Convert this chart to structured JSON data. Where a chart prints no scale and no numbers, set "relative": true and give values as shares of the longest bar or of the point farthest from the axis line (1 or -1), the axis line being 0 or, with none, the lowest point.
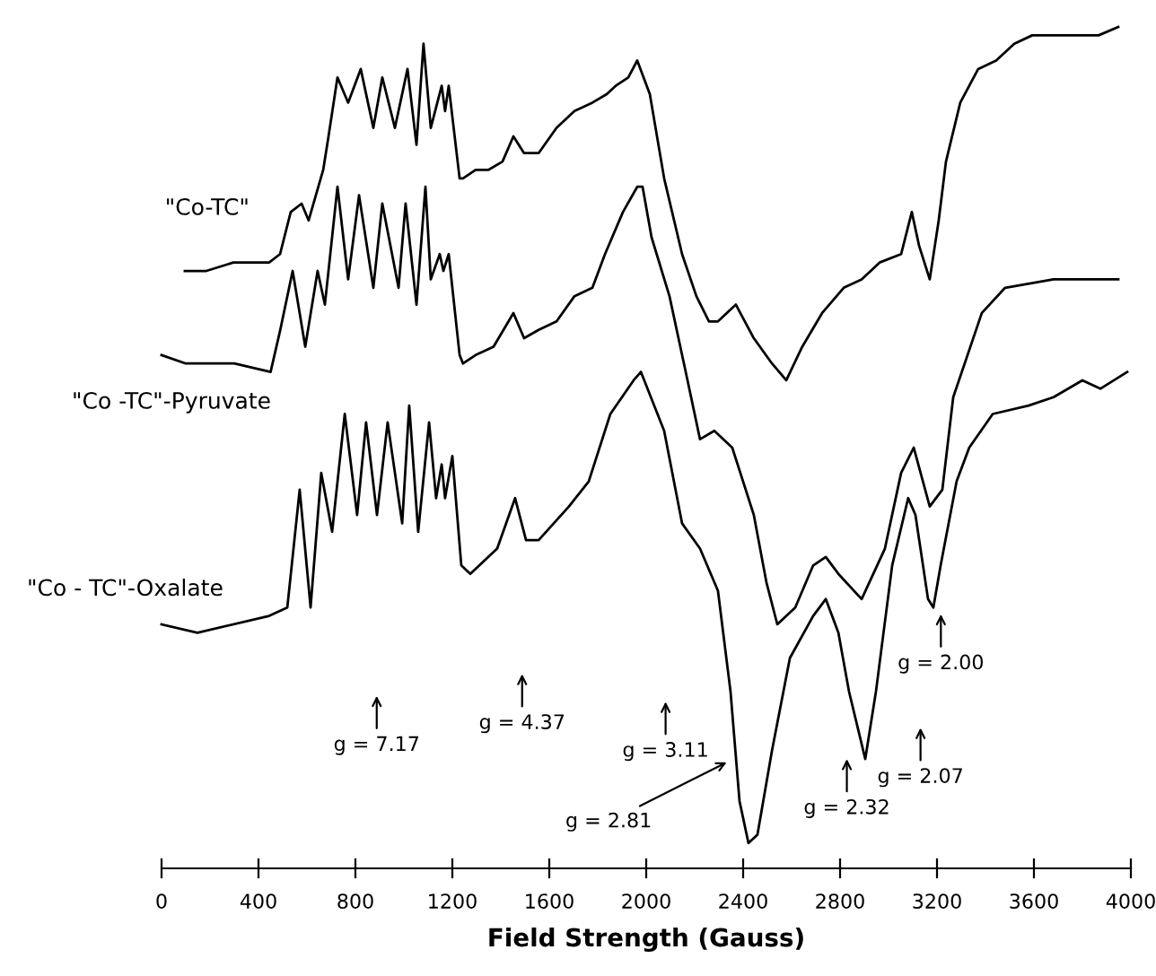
{
  "chart_data": {
    "type": "line",
    "relative": true,
    "xlabel": "Field Strength (Gauss)",
    "xlim": [
      0,
      4000
    ],
    "xticks": [
      0,
      400,
      800,
      1200,
      1600,
      2000,
      2400,
      2800,
      3200,
      3600,
      4000
    ],
    "tick_labels": "x",
    "grid": false,
    "legend": false,
    "series": [
      {
        "name": "\"Co-TC\"",
        "color": "#000000",
        "x": [
          96,
          185,
          296,
          444,
          489,
          533,
          578,
          607,
          667,
          689,
          726,
          770,
          822,
          874,
          911,
          963,
          1015,
          1052,
          1081,
          1111,
          1156,
          1170,
          1185,
          1230,
          1244,
          1296,
          1348,
          1407,
          1452,
          1496,
          1556,
          1630,
          1704,
          1778,
          1837,
          1874,
          1926,
          1963,
          2015,
          2074,
          2148,
          2207,
          2259,
          2296,
          2370,
          2444,
          2519,
          2578,
          2644,
          2726,
          2815,
          2889,
          2963,
          3052,
          3096,
          3126,
          3170,
          3207,
          3237,
          3296,
          3370,
          3444,
          3519,
          3593,
          3704,
          3778,
          3867,
          3948
        ],
        "values": [
          0.71,
          0.71,
          0.72,
          0.72,
          0.73,
          0.78,
          0.79,
          0.77,
          0.83,
          0.87,
          0.94,
          0.91,
          0.95,
          0.88,
          0.94,
          0.88,
          0.95,
          0.86,
          0.98,
          0.88,
          0.93,
          0.9,
          0.93,
          0.82,
          0.82,
          0.83,
          0.83,
          0.84,
          0.87,
          0.85,
          0.85,
          0.88,
          0.9,
          0.91,
          0.92,
          0.93,
          0.94,
          0.96,
          0.92,
          0.82,
          0.73,
          0.68,
          0.65,
          0.65,
          0.67,
          0.63,
          0.6,
          0.58,
          0.62,
          0.66,
          0.69,
          0.7,
          0.72,
          0.73,
          0.78,
          0.74,
          0.7,
          0.77,
          0.84,
          0.91,
          0.95,
          0.96,
          0.98,
          0.99,
          0.99,
          0.99,
          0.99,
          1.0
        ]
      },
      {
        "name": "\"Co -TC\"-Pyruvate",
        "color": "#000000",
        "x": [
          0,
          100,
          300,
          450,
          490,
          541,
          593,
          644,
          674,
          726,
          770,
          815,
          874,
          911,
          978,
          1007,
          1052,
          1089,
          1111,
          1148,
          1163,
          1185,
          1230,
          1244,
          1296,
          1370,
          1452,
          1496,
          1556,
          1630,
          1704,
          1778,
          1830,
          1904,
          1963,
          1985,
          2022,
          2096,
          2163,
          2222,
          2281,
          2355,
          2444,
          2496,
          2541,
          2615,
          2689,
          2741,
          2793,
          2889,
          2985,
          3052,
          3104,
          3170,
          3222,
          3267,
          3385,
          3481,
          3681,
          3830,
          3948
        ],
        "values": [
          0.61,
          0.6,
          0.6,
          0.59,
          0.64,
          0.71,
          0.62,
          0.71,
          0.67,
          0.81,
          0.7,
          0.8,
          0.69,
          0.79,
          0.69,
          0.79,
          0.67,
          0.81,
          0.7,
          0.73,
          0.71,
          0.73,
          0.61,
          0.6,
          0.61,
          0.62,
          0.66,
          0.63,
          0.64,
          0.65,
          0.68,
          0.69,
          0.73,
          0.78,
          0.81,
          0.81,
          0.75,
          0.68,
          0.59,
          0.51,
          0.52,
          0.5,
          0.42,
          0.34,
          0.29,
          0.31,
          0.36,
          0.37,
          0.35,
          0.32,
          0.38,
          0.47,
          0.5,
          0.43,
          0.45,
          0.56,
          0.66,
          0.69,
          0.7,
          0.7,
          0.7
        ]
      },
      {
        "name": "\"Co - TC\"-Oxalate",
        "color": "#000000",
        "x": [
          0,
          148,
          444,
          519,
          570,
          615,
          659,
          704,
          756,
          807,
          844,
          889,
          933,
          993,
          1022,
          1059,
          1104,
          1133,
          1156,
          1170,
          1200,
          1237,
          1274,
          1385,
          1459,
          1504,
          1556,
          1681,
          1763,
          1852,
          1948,
          1978,
          2074,
          2148,
          2222,
          2296,
          2348,
          2385,
          2422,
          2459,
          2519,
          2593,
          2689,
          2741,
          2793,
          2837,
          2904,
          2948,
          3015,
          3081,
          3111,
          3163,
          3185,
          3215,
          3281,
          3333,
          3430,
          3578,
          3681,
          3800,
          3874,
          3985
        ],
        "values": [
          0.29,
          0.28,
          0.3,
          0.31,
          0.45,
          0.31,
          0.47,
          0.4,
          0.54,
          0.42,
          0.53,
          0.42,
          0.53,
          0.41,
          0.55,
          0.4,
          0.53,
          0.44,
          0.48,
          0.44,
          0.49,
          0.36,
          0.35,
          0.38,
          0.44,
          0.39,
          0.39,
          0.43,
          0.46,
          0.54,
          0.58,
          0.59,
          0.52,
          0.41,
          0.38,
          0.33,
          0.21,
          0.08,
          0.03,
          0.04,
          0.14,
          0.25,
          0.3,
          0.32,
          0.28,
          0.21,
          0.13,
          0.21,
          0.36,
          0.44,
          0.42,
          0.32,
          0.31,
          0.36,
          0.46,
          0.5,
          0.54,
          0.55,
          0.56,
          0.58,
          0.57,
          0.59
        ]
      }
    ],
    "annotations": [
      "g = 7.17",
      "g = 4.37",
      "g = 3.11",
      "g = 2.81",
      "g = 2.32",
      "g = 2.07",
      "g = 2.00"
    ]
  }
}
